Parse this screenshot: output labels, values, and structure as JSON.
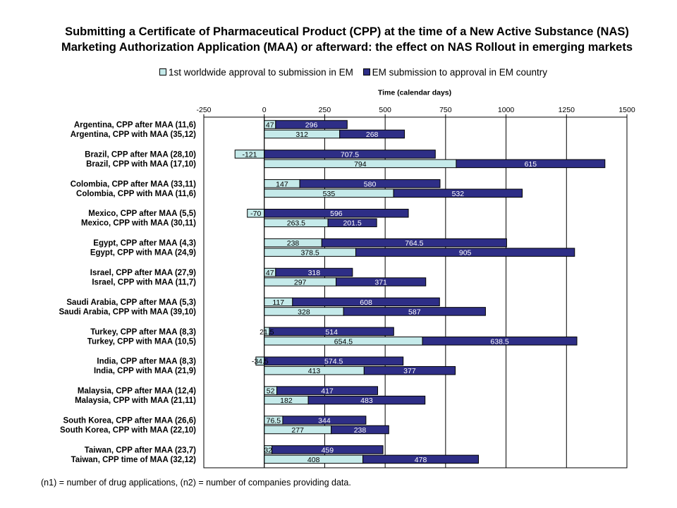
{
  "chart_data": {
    "type": "bar",
    "stacked": true,
    "orientation": "horizontal",
    "title": [
      "Submitting a Certificate of Pharmaceutical Product (CPP) at the time of a New Active Substance (NAS)",
      "Marketing Authorization Application (MAA) or afterward: the effect on NAS Rollout in emerging markets"
    ],
    "xlabel": "Time (calendar days)",
    "xlim": [
      -250,
      1500
    ],
    "xticks": [
      -250,
      0,
      250,
      500,
      750,
      1000,
      1250,
      1500
    ],
    "grid": true,
    "legend_position": "top",
    "series": [
      {
        "name": "1st worldwide approval to submission in EM",
        "color": "#c5eaea",
        "values": [
          47,
          312,
          -121,
          794,
          147,
          535,
          -70,
          263.5,
          238,
          378.5,
          47,
          297,
          117,
          328,
          21.5,
          654.5,
          -34.5,
          413,
          52,
          182,
          76.5,
          277,
          32,
          408
        ]
      },
      {
        "name": "EM submission to approval in EM country",
        "color": "#2e2e86",
        "values": [
          296,
          268,
          707.5,
          615,
          580,
          532,
          596,
          201.5,
          764.5,
          905,
          318,
          371,
          608,
          587,
          514,
          638.5,
          574.5,
          377,
          417,
          483,
          344,
          238,
          459,
          478
        ]
      }
    ],
    "label_texts_series1": [
      "47",
      "312",
      "-121",
      "794",
      "147",
      "535",
      "-70",
      "263.5",
      "238",
      "378.5",
      "47",
      "297",
      "117",
      "328",
      "21.5",
      "654.5",
      "-34.5",
      "413",
      "52",
      "182",
      "76.5",
      "277",
      "32",
      "408"
    ],
    "label_texts_series2": [
      "296",
      "268",
      "707.5",
      "615",
      "580",
      "532",
      "596",
      "201.5",
      "764.5",
      "905",
      "318",
      "371",
      "608",
      "587",
      "514",
      "638.5",
      "574.5",
      "377",
      "417",
      "483",
      "344",
      "238",
      "459",
      "478"
    ],
    "categories": [
      "Argentina, CPP after MAA (11,6)",
      "Argentina, CPP with MAA (35,12)",
      "Brazil, CPP after MAA (28,10)",
      "Brazil, CPP with MAA (17,10)",
      "Colombia, CPP after MAA (33,11)",
      "Colombia, CPP with MAA (11,6)",
      "Mexico, CPP after MAA (5,5)",
      "Mexico, CPP with MAA (30,11)",
      "Egypt, CPP after MAA (4,3)",
      "Egypt, CPP with MAA (24,9)",
      "Israel, CPP after MAA (27,9)",
      "Israel, CPP with MAA (11,7)",
      "Saudi Arabia, CPP after MAA (5,3)",
      "Saudi Arabia, CPP with MAA (39,10)",
      "Turkey, CPP after MAA (8,3)",
      "Turkey, CPP with MAA (10,5)",
      "India, CPP after MAA (8,3)",
      "India, CPP with MAA (21,9)",
      "Malaysia, CPP after MAA (12,4)",
      "Malaysia, CPP with MAA (21,11)",
      "South Korea, CPP after MAA (26,6)",
      "South Korea, CPP with MAA (22,10)",
      "Taiwan, CPP after MAA (23,7)",
      "Taiwan, CPP time of MAA (32,12)"
    ],
    "footnote": "(n1) = number of drug applications, (n2) = number of companies providing data."
  }
}
